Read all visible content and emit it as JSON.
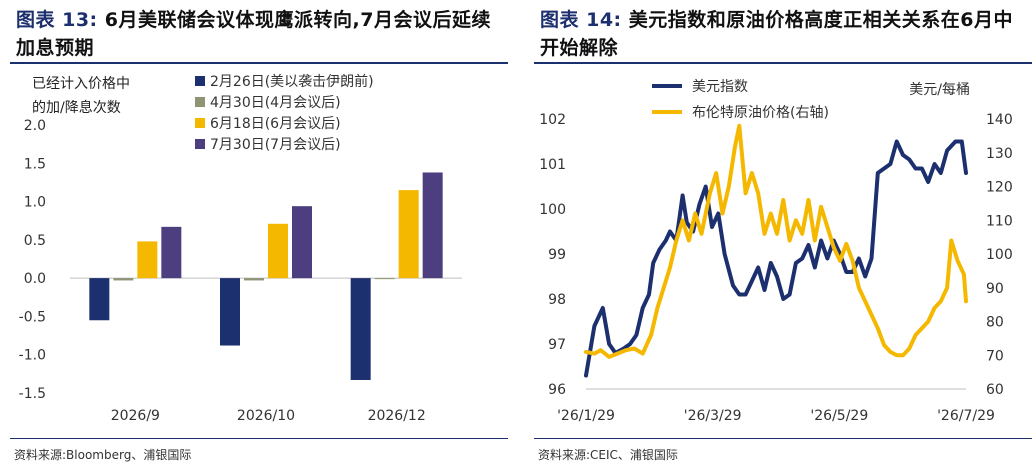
{
  "left": {
    "title_prefix": "图表 13:",
    "title_text": "6月美联储会议体现鹰派转向,7月会议后延续加息预期",
    "source": "资料来源:Bloomberg、浦银国际",
    "chart_data": {
      "type": "bar",
      "ylabel": "已经计入价格中的加/降息次数",
      "categories": [
        "2026/9",
        "2026/10",
        "2026/12"
      ],
      "ylim": [
        -1.5,
        2.0
      ],
      "yticks": [
        "2.0",
        "1.5",
        "1.0",
        "0.5",
        "0.0",
        "-0.5",
        "-1.0",
        "-1.5"
      ],
      "legend_position": "top",
      "series": [
        {
          "name": "2月26日(美以袭击伊朗前)",
          "color": "#1c2f6e",
          "values": [
            -0.55,
            -0.88,
            -1.33
          ]
        },
        {
          "name": "4月30日(4月会议后)",
          "color": "#8f9474",
          "values": [
            -0.03,
            -0.03,
            0.0
          ]
        },
        {
          "name": "6月18日(6月会议后)",
          "color": "#f5b800",
          "values": [
            0.48,
            0.71,
            1.15
          ]
        },
        {
          "name": "7月30日(7月会议后)",
          "color": "#4d3f7f",
          "values": [
            0.67,
            0.94,
            1.38
          ]
        }
      ]
    }
  },
  "right": {
    "title_prefix": "图表 14:",
    "title_text": "美元指数和原油价格高度正相关关系在6月中开始解除",
    "source": "资料来源:CEIC、浦银国际",
    "chart_data": {
      "type": "line",
      "left_axis": {
        "ylim": [
          96,
          102
        ],
        "ticks": [
          "102",
          "101",
          "100",
          "99",
          "98",
          "97",
          "96"
        ]
      },
      "right_axis": {
        "label": "美元/每桶",
        "ylim": [
          60,
          140
        ],
        "ticks": [
          "140",
          "130",
          "120",
          "110",
          "100",
          "90",
          "80",
          "70",
          "60"
        ]
      },
      "x_tick_labels": [
        "'26/1/29",
        "'26/3/29",
        "'26/5/29",
        "'26/7/29"
      ],
      "x_range": [
        "2026-01-29",
        "2026-07-29"
      ],
      "legend_position": "top-left",
      "series": [
        {
          "name": "美元指数",
          "axis": "left",
          "color": "#1c2f6e",
          "points": [
            [
              "2026-01-29",
              96.3
            ],
            [
              "2026-02-02",
              97.4
            ],
            [
              "2026-02-04",
              97.6
            ],
            [
              "2026-02-06",
              97.8
            ],
            [
              "2026-02-09",
              97.0
            ],
            [
              "2026-02-12",
              96.8
            ],
            [
              "2026-02-16",
              96.9
            ],
            [
              "2026-02-19",
              97.0
            ],
            [
              "2026-02-22",
              97.2
            ],
            [
              "2026-02-25",
              97.8
            ],
            [
              "2026-02-28",
              98.1
            ],
            [
              "2026-03-02",
              98.8
            ],
            [
              "2026-03-05",
              99.1
            ],
            [
              "2026-03-08",
              99.3
            ],
            [
              "2026-03-10",
              99.5
            ],
            [
              "2026-03-13",
              99.3
            ],
            [
              "2026-03-16",
              100.3
            ],
            [
              "2026-03-18",
              99.7
            ],
            [
              "2026-03-21",
              99.5
            ],
            [
              "2026-03-24",
              100.1
            ],
            [
              "2026-03-27",
              100.5
            ],
            [
              "2026-03-30",
              99.6
            ],
            [
              "2026-04-02",
              99.9
            ],
            [
              "2026-04-05",
              99.0
            ],
            [
              "2026-04-09",
              98.3
            ],
            [
              "2026-04-12",
              98.1
            ],
            [
              "2026-04-15",
              98.1
            ],
            [
              "2026-04-18",
              98.4
            ],
            [
              "2026-04-21",
              98.7
            ],
            [
              "2026-04-24",
              98.2
            ],
            [
              "2026-04-27",
              98.8
            ],
            [
              "2026-04-30",
              98.5
            ],
            [
              "2026-05-03",
              98.0
            ],
            [
              "2026-05-06",
              98.1
            ],
            [
              "2026-05-09",
              98.8
            ],
            [
              "2026-05-12",
              98.9
            ],
            [
              "2026-05-15",
              99.2
            ],
            [
              "2026-05-18",
              98.7
            ],
            [
              "2026-05-21",
              99.3
            ],
            [
              "2026-05-24",
              98.9
            ],
            [
              "2026-05-27",
              99.3
            ],
            [
              "2026-05-30",
              99.0
            ],
            [
              "2026-06-02",
              98.6
            ],
            [
              "2026-06-05",
              98.6
            ],
            [
              "2026-06-08",
              98.9
            ],
            [
              "2026-06-11",
              98.5
            ],
            [
              "2026-06-14",
              98.9
            ],
            [
              "2026-06-17",
              100.8
            ],
            [
              "2026-06-20",
              100.9
            ],
            [
              "2026-06-23",
              101.0
            ],
            [
              "2026-06-26",
              101.5
            ],
            [
              "2026-06-29",
              101.2
            ],
            [
              "2026-07-02",
              101.1
            ],
            [
              "2026-07-05",
              100.9
            ],
            [
              "2026-07-08",
              100.9
            ],
            [
              "2026-07-11",
              100.6
            ],
            [
              "2026-07-14",
              101.0
            ],
            [
              "2026-07-17",
              100.8
            ],
            [
              "2026-07-20",
              101.3
            ],
            [
              "2026-07-24",
              101.5
            ],
            [
              "2026-07-27",
              101.5
            ],
            [
              "2026-07-29",
              100.8
            ]
          ]
        },
        {
          "name": "布伦特原油价格(右轴)",
          "axis": "right",
          "color": "#f5b800",
          "points": [
            [
              "2026-01-29",
              71.0
            ],
            [
              "2026-02-02",
              70.5
            ],
            [
              "2026-02-05",
              71.5
            ],
            [
              "2026-02-09",
              69.5
            ],
            [
              "2026-02-13",
              70.5
            ],
            [
              "2026-02-17",
              71.5
            ],
            [
              "2026-02-21",
              72.0
            ],
            [
              "2026-02-25",
              70.5
            ],
            [
              "2026-03-01",
              76.0
            ],
            [
              "2026-03-04",
              84.0
            ],
            [
              "2026-03-07",
              90.0
            ],
            [
              "2026-03-10",
              96.0
            ],
            [
              "2026-03-13",
              104.0
            ],
            [
              "2026-03-16",
              110.0
            ],
            [
              "2026-03-19",
              104.0
            ],
            [
              "2026-03-22",
              112.0
            ],
            [
              "2026-03-25",
              106.0
            ],
            [
              "2026-03-29",
              118.0
            ],
            [
              "2026-04-01",
              124.0
            ],
            [
              "2026-04-04",
              112.0
            ],
            [
              "2026-04-07",
              120.0
            ],
            [
              "2026-04-10",
              132.0
            ],
            [
              "2026-04-12",
              138.0
            ],
            [
              "2026-04-15",
              118.0
            ],
            [
              "2026-04-18",
              124.0
            ],
            [
              "2026-04-21",
              118.0
            ],
            [
              "2026-04-24",
              106.0
            ],
            [
              "2026-04-27",
              112.0
            ],
            [
              "2026-04-30",
              106.0
            ],
            [
              "2026-05-03",
              116.0
            ],
            [
              "2026-05-06",
              104.0
            ],
            [
              "2026-05-09",
              110.0
            ],
            [
              "2026-05-12",
              106.0
            ],
            [
              "2026-05-15",
              116.0
            ],
            [
              "2026-05-18",
              104.0
            ],
            [
              "2026-05-21",
              114.0
            ],
            [
              "2026-05-24",
              108.0
            ],
            [
              "2026-05-27",
              102.0
            ],
            [
              "2026-05-30",
              98.0
            ],
            [
              "2026-06-02",
              103.0
            ],
            [
              "2026-06-05",
              98.0
            ],
            [
              "2026-06-08",
              90.0
            ],
            [
              "2026-06-11",
              86.0
            ],
            [
              "2026-06-14",
              82.0
            ],
            [
              "2026-06-17",
              78.0
            ],
            [
              "2026-06-20",
              73.0
            ],
            [
              "2026-06-23",
              71.0
            ],
            [
              "2026-06-26",
              70.0
            ],
            [
              "2026-06-29",
              70.0
            ],
            [
              "2026-07-02",
              72.0
            ],
            [
              "2026-07-05",
              76.0
            ],
            [
              "2026-07-08",
              78.0
            ],
            [
              "2026-07-11",
              80.0
            ],
            [
              "2026-07-14",
              84.0
            ],
            [
              "2026-07-17",
              86.0
            ],
            [
              "2026-07-20",
              90.0
            ],
            [
              "2026-07-22",
              104.0
            ],
            [
              "2026-07-25",
              98.0
            ],
            [
              "2026-07-28",
              94.0
            ],
            [
              "2026-07-29",
              86.0
            ]
          ]
        }
      ]
    }
  }
}
